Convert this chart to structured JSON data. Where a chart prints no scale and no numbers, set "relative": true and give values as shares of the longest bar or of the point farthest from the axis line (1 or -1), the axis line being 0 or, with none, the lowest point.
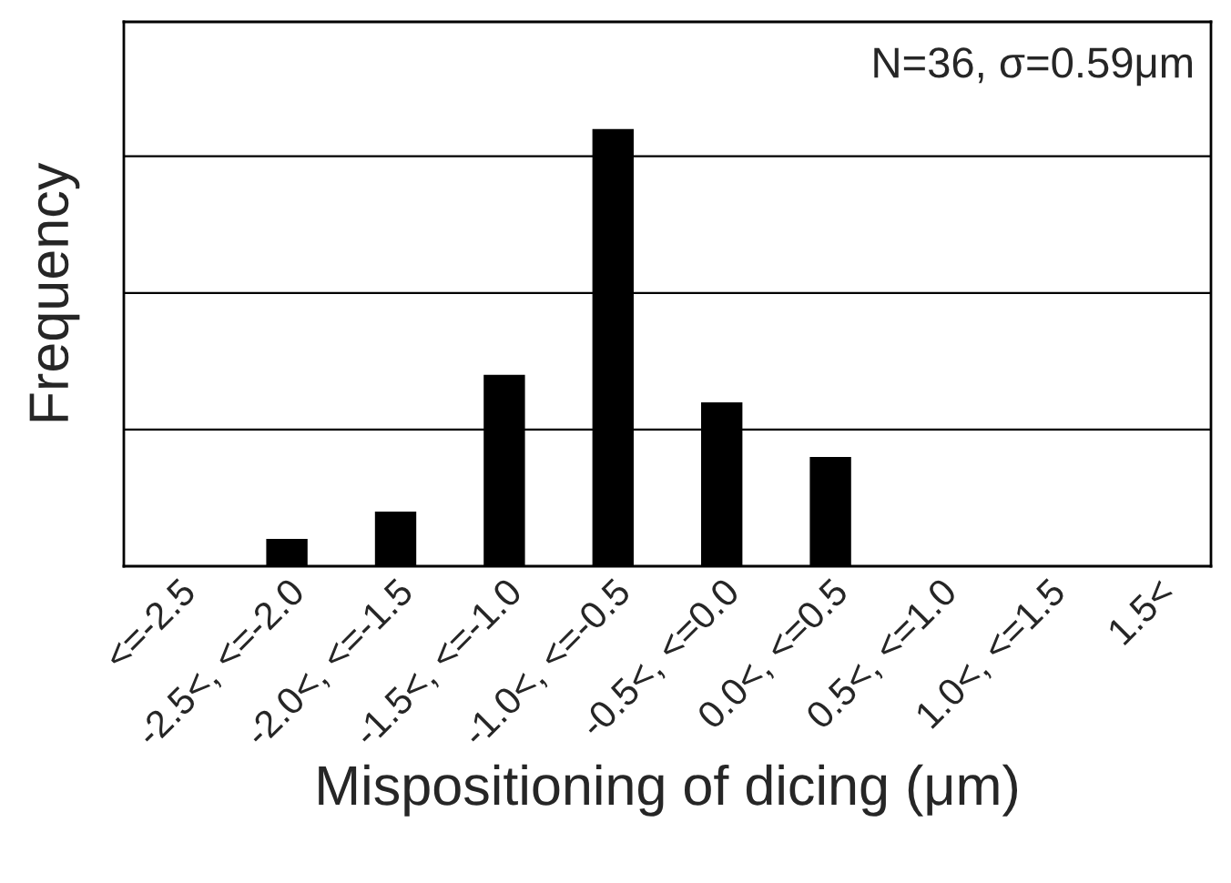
{
  "chart_data": {
    "type": "bar",
    "relative": true,
    "xlabel": "Mispositioning of dicing (μm)",
    "ylabel": "Frequency",
    "categories": [
      "<=-2.5",
      "-2.5<, <=-2.0",
      "-2.0<, <=-1.5",
      "-1.5<, <=-1.0",
      "-1.0<, <=-0.5",
      "-0.5<, <=0.0",
      "0.0<, <=0.5",
      "0.5<, <=1.0",
      "1.0<, <=1.5",
      "1.5<"
    ],
    "values": [
      0,
      0.0625,
      0.125,
      0.4375,
      1,
      0.375,
      0.25,
      0,
      0,
      0
    ],
    "color": "#000000",
    "grid": "y",
    "annotations": [
      "N=36, σ=0.59μm"
    ]
  }
}
